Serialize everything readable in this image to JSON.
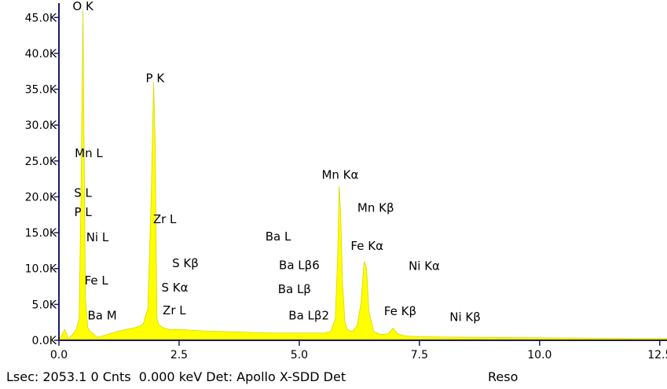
{
  "chart_data": {
    "type": "area",
    "title": "",
    "xlabel": "",
    "ylabel": "",
    "xlim": [
      0,
      12.65
    ],
    "ylim": [
      0,
      47000
    ],
    "grid": false,
    "colors": {
      "fill": "#ffff00",
      "outline": "#d8d800",
      "axis": "#1a1a6e"
    },
    "x_ticks": [
      {
        "value": 0,
        "label": "0.0"
      },
      {
        "value": 2.5,
        "label": "2.5"
      },
      {
        "value": 5.0,
        "label": "5.0"
      },
      {
        "value": 7.5,
        "label": "7.5"
      },
      {
        "value": 10.0,
        "label": "10.0"
      },
      {
        "value": 12.5,
        "label": "12.5"
      }
    ],
    "y_ticks": [
      {
        "value": 0,
        "label": "0.0K"
      },
      {
        "value": 5000,
        "label": "5.0K"
      },
      {
        "value": 10000,
        "label": "10.0K"
      },
      {
        "value": 15000,
        "label": "15.0K"
      },
      {
        "value": 20000,
        "label": "20.0K"
      },
      {
        "value": 25000,
        "label": "25.0K"
      },
      {
        "value": 30000,
        "label": "30.0K"
      },
      {
        "value": 35000,
        "label": "35.0K"
      },
      {
        "value": 40000,
        "label": "40.0K"
      },
      {
        "value": 45000,
        "label": "45.0K"
      }
    ],
    "spectrum": {
      "x": [
        0.0,
        0.12,
        0.2,
        0.28,
        0.36,
        0.42,
        0.46,
        0.49,
        0.5,
        0.52,
        0.55,
        0.6,
        0.65,
        0.7,
        0.8,
        1.0,
        1.2,
        1.4,
        1.6,
        1.75,
        1.85,
        1.92,
        1.97,
        2.0,
        2.02,
        2.04,
        2.08,
        2.15,
        2.3,
        2.5,
        3.0,
        3.5,
        4.0,
        4.5,
        5.0,
        5.5,
        5.65,
        5.75,
        5.8,
        5.83,
        5.86,
        5.9,
        5.95,
        6.0,
        6.1,
        6.2,
        6.28,
        6.35,
        6.4,
        6.45,
        6.55,
        6.7,
        6.85,
        6.95,
        7.05,
        7.2,
        7.5,
        8.0,
        9.0,
        10.0,
        11.0,
        12.0,
        12.65
      ],
      "y": [
        0,
        1500,
        200,
        800,
        1500,
        3000,
        20000,
        40000,
        46000,
        30000,
        6000,
        1800,
        1200,
        1000,
        400,
        800,
        1200,
        1500,
        1800,
        2200,
        4500,
        20000,
        36000,
        28000,
        15000,
        3000,
        2200,
        1800,
        1500,
        1500,
        1300,
        1200,
        1100,
        1000,
        1000,
        1000,
        1200,
        3000,
        12000,
        21500,
        18000,
        8000,
        2500,
        1500,
        1200,
        2000,
        5000,
        11000,
        10000,
        4000,
        1200,
        800,
        900,
        1700,
        900,
        600,
        500,
        450,
        400,
        350,
        300,
        250,
        250
      ]
    },
    "annotations": [
      {
        "text": "O  K",
        "x": 0.5,
        "y": 46000
      },
      {
        "text": "P  K",
        "x": 2.0,
        "y": 36000
      },
      {
        "text": "Mn L",
        "x": 0.62,
        "y": 25500
      },
      {
        "text": "S  L",
        "x": 0.5,
        "y": 20000
      },
      {
        "text": "P  L",
        "x": 0.5,
        "y": 17300
      },
      {
        "text": "Ni L",
        "x": 0.8,
        "y": 13800
      },
      {
        "text": "Fe L",
        "x": 0.78,
        "y": 7800
      },
      {
        "text": "Ba M",
        "x": 0.9,
        "y": 2900
      },
      {
        "text": "Zr L",
        "x": 2.2,
        "y": 16300
      },
      {
        "text": "S  Kβ",
        "x": 2.63,
        "y": 10200
      },
      {
        "text": "S  Kα",
        "x": 2.41,
        "y": 6800
      },
      {
        "text": "Zr L",
        "x": 2.4,
        "y": 3600
      },
      {
        "text": "Ba L",
        "x": 4.56,
        "y": 13900
      },
      {
        "text": "Ba Lβ6",
        "x": 5.0,
        "y": 9900
      },
      {
        "text": "Ba Lβ",
        "x": 4.9,
        "y": 6600
      },
      {
        "text": "Ba Lβ2",
        "x": 5.2,
        "y": 2900
      },
      {
        "text": "Mn Kα",
        "x": 5.85,
        "y": 22500
      },
      {
        "text": "Mn Kβ",
        "x": 6.59,
        "y": 17900
      },
      {
        "text": "Fe Kα",
        "x": 6.41,
        "y": 12600
      },
      {
        "text": "Ni Kα",
        "x": 7.6,
        "y": 9800
      },
      {
        "text": "Fe Kβ",
        "x": 7.1,
        "y": 3500
      },
      {
        "text": "Ni Kβ",
        "x": 8.45,
        "y": 2700
      }
    ]
  },
  "status_bar": {
    "lsec": "Lsec: 2053.1 0 Cnts  0.000 keV Det: Apollo X-SDD Det",
    "reso": "Reso"
  }
}
